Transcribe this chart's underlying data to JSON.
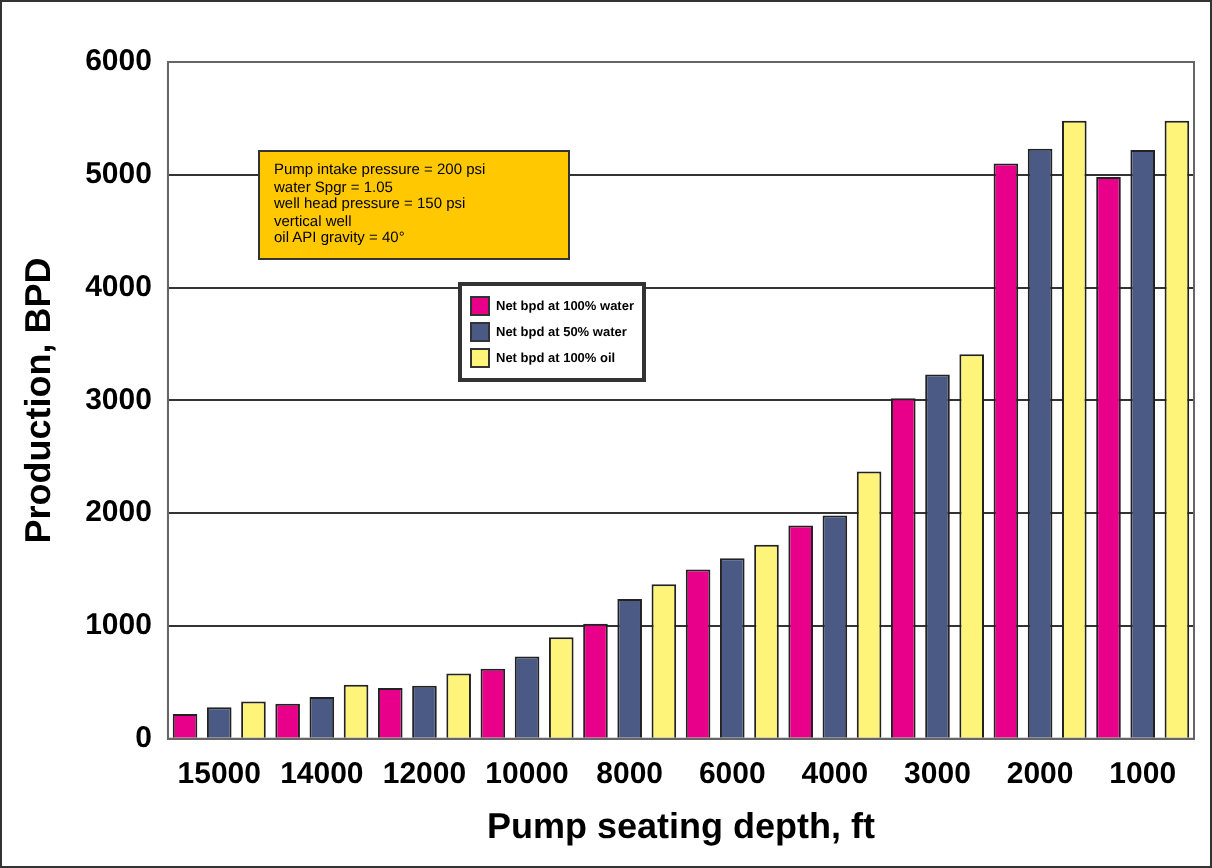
{
  "chart_data": {
    "type": "bar",
    "xlabel": "Pump seating depth, ft",
    "ylabel": "Production, BPD",
    "categories": [
      "15000",
      "14000",
      "12000",
      "10000",
      "8000",
      "6000",
      "4000",
      "3000",
      "2000",
      "1000"
    ],
    "series": [
      {
        "name": "Net bpd at 100% water",
        "color": "#e8008a",
        "values": [
          220,
          310,
          450,
          620,
          1020,
          1500,
          1890,
          3020,
          5100,
          4980
        ]
      },
      {
        "name": "Net bpd at 50% water",
        "color": "#4a5a85",
        "values": [
          280,
          370,
          470,
          730,
          1240,
          1600,
          1980,
          3230,
          5230,
          5220
        ]
      },
      {
        "name": "Net bpd at 100% oil",
        "color": "#fff47a",
        "values": [
          330,
          480,
          580,
          900,
          1370,
          1720,
          2370,
          3410,
          5480,
          5480
        ]
      }
    ],
    "ylim": [
      0,
      6000
    ],
    "yticks": [
      0,
      1000,
      2000,
      3000,
      4000,
      5000,
      6000
    ],
    "grid": "y",
    "legend": "top left",
    "annotations": [
      "Pump intake pressure = 200 psi\nwater Spgr = 1.05\nwell head pressure = 150 psi\nvertical well\noil API gravity = 40°"
    ]
  }
}
